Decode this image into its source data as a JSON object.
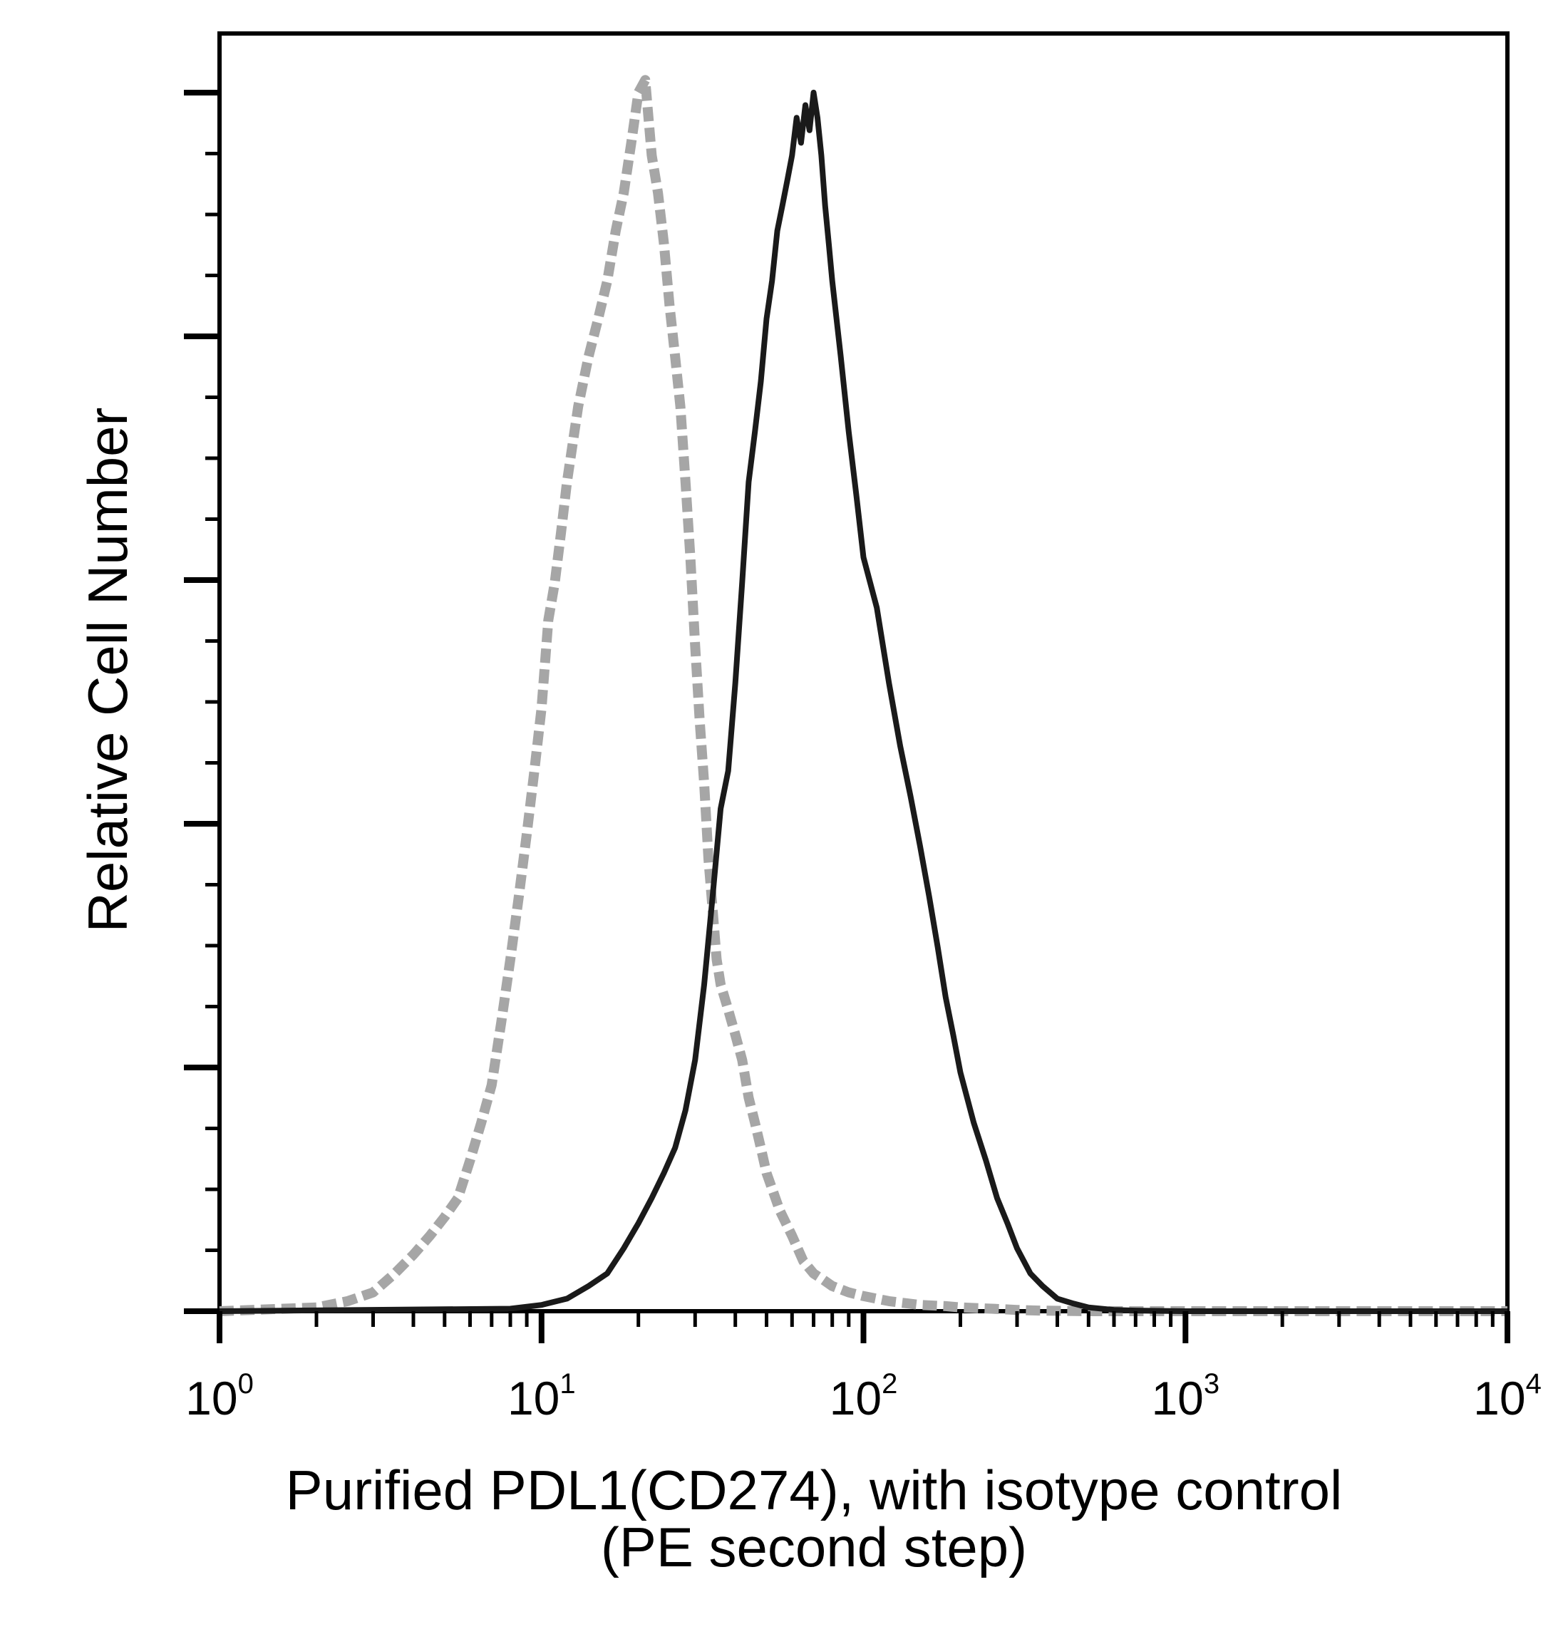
{
  "chart_data": {
    "type": "line",
    "xlabel": [
      "Purified PDL1(CD274), with isotype control",
      "(PE second step)"
    ],
    "ylabel": "Relative Cell Number",
    "x_scale": "log",
    "xlim": [
      1,
      10000
    ],
    "ylim": [
      0,
      100
    ],
    "x_ticks": [
      {
        "base": "10",
        "exp": "0",
        "value": 1
      },
      {
        "base": "10",
        "exp": "1",
        "value": 10
      },
      {
        "base": "10",
        "exp": "2",
        "value": 100
      },
      {
        "base": "10",
        "exp": "3",
        "value": 1000
      },
      {
        "base": "10",
        "exp": "4",
        "value": 10000
      }
    ],
    "grid": false,
    "series": [
      {
        "style": "dashed",
        "color": "#a6a6a6",
        "x": [
          1,
          2,
          2.5,
          3,
          3.5,
          4,
          4.5,
          5,
          5.5,
          6,
          6.5,
          7,
          7.5,
          8,
          8.5,
          9,
          9.5,
          10,
          10.5,
          11,
          11.5,
          12,
          13,
          14,
          15,
          16,
          17,
          18,
          19,
          20,
          21,
          22,
          23,
          24,
          25,
          26,
          27,
          28,
          29,
          30,
          31,
          32,
          33,
          34,
          35,
          36,
          38,
          40,
          42,
          44,
          46,
          48,
          50,
          55,
          60,
          65,
          70,
          75,
          80,
          90,
          100,
          120,
          150,
          180,
          200,
          250,
          300,
          350,
          500,
          1000,
          10000
        ],
        "y": [
          0,
          0.3,
          0.8,
          1.5,
          3,
          4.5,
          6,
          7.5,
          9,
          12,
          15,
          18,
          23,
          28,
          33,
          38,
          43,
          48,
          55,
          58,
          62,
          66,
          72,
          76,
          79,
          82,
          86,
          89,
          93,
          97,
          98,
          92,
          89,
          85,
          80,
          76,
          72,
          66,
          60,
          53,
          47,
          42,
          36,
          32,
          28,
          26,
          24,
          22,
          20,
          17,
          15,
          13,
          11,
          8,
          6,
          4,
          3,
          2.5,
          2,
          1.5,
          1.2,
          0.8,
          0.5,
          0.4,
          0.3,
          0.2,
          0.1,
          0.05,
          0,
          0,
          0
        ]
      },
      {
        "style": "solid",
        "color": "#1a1a1a",
        "x": [
          1,
          8,
          10,
          12,
          14,
          16,
          18,
          20,
          22,
          24,
          26,
          28,
          30,
          32,
          34,
          36,
          38,
          40,
          42,
          44,
          46,
          48,
          50,
          52,
          54,
          56,
          58,
          60,
          62,
          64,
          66,
          68,
          70,
          72,
          74,
          76,
          78,
          80,
          85,
          90,
          95,
          100,
          110,
          120,
          130,
          140,
          150,
          160,
          170,
          180,
          190,
          200,
          220,
          240,
          260,
          280,
          300,
          330,
          360,
          400,
          450,
          500,
          600,
          700,
          1000,
          10000
        ],
        "y": [
          0,
          0.2,
          0.5,
          1,
          2,
          3,
          5,
          7,
          9,
          11,
          13,
          16,
          20,
          26,
          33,
          40,
          43,
          50,
          58,
          66,
          70,
          74,
          79,
          82,
          86,
          88,
          90,
          92,
          95,
          93,
          96,
          94,
          97,
          95,
          92,
          88,
          85,
          82,
          76,
          70,
          65,
          60,
          56,
          50,
          45,
          41,
          37,
          33,
          29,
          25,
          22,
          19,
          15,
          12,
          9,
          7,
          5,
          3,
          2,
          1,
          0.6,
          0.3,
          0.1,
          0.05,
          0,
          0
        ]
      }
    ]
  }
}
